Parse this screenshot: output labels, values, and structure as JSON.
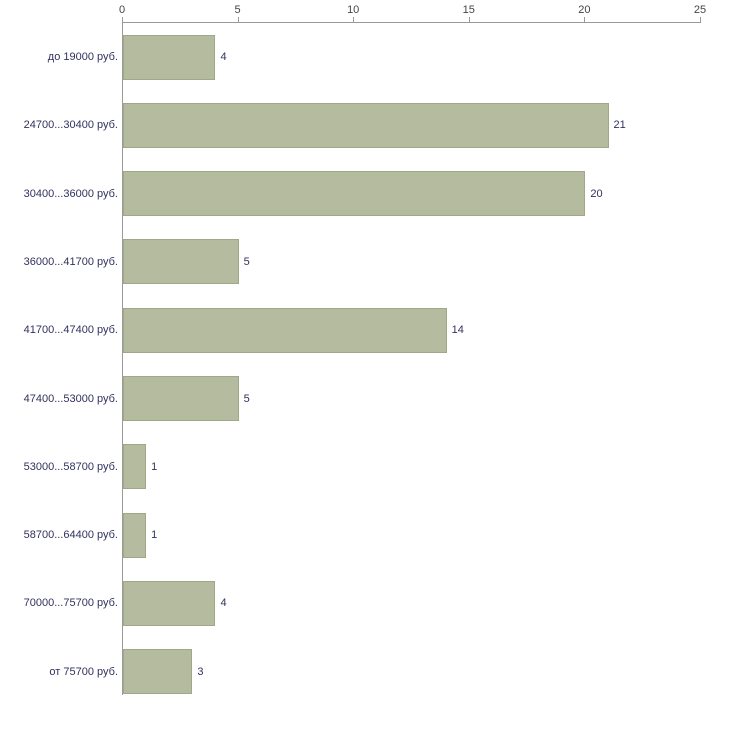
{
  "chart_data": {
    "type": "bar",
    "orientation": "horizontal",
    "title": "",
    "xlabel": "",
    "ylabel": "",
    "categories": [
      "до 19000 руб.",
      "24700...30400 руб.",
      "30400...36000 руб.",
      "36000...41700 руб.",
      "41700...47400 руб.",
      "47400...53000 руб.",
      "53000...58700 руб.",
      "58700...64400 руб.",
      "70000...75700 руб.",
      "от 75700 руб."
    ],
    "values": [
      4,
      21,
      20,
      5,
      14,
      5,
      1,
      1,
      4,
      3
    ],
    "xlim": [
      0,
      25
    ],
    "x_ticks": [
      0,
      5,
      10,
      15,
      20,
      25
    ],
    "grid": false,
    "legend": "none",
    "bar_color": "#b4bb9e",
    "bar_border_color": "#a0a987",
    "label_color": "#31315e",
    "value_color": "#31315e",
    "axis_tick_color": "#444444"
  }
}
